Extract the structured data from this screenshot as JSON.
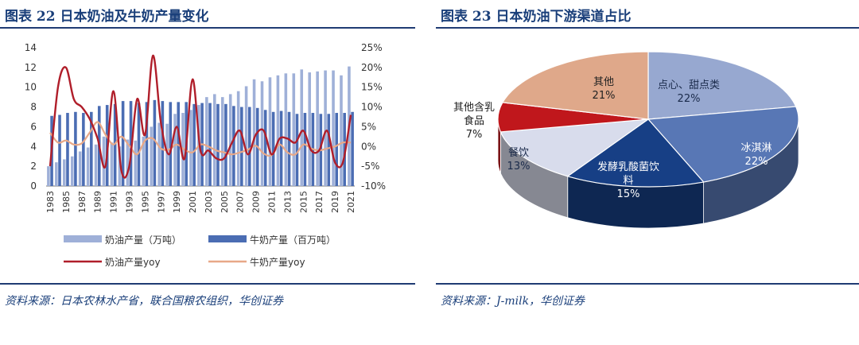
{
  "panels": {
    "left": {
      "title": "图表 22 日本奶油及牛奶产量变化",
      "source": "资料来源：日本农林水产省，联合国粮农组织，华创证券"
    },
    "right": {
      "title": "图表 23 日本奶油下游渠道占比",
      "source": "资料来源：J-milk，华创证券"
    }
  },
  "colors": {
    "title": "#1a3f7a",
    "butter_bar": "#9fb0d8",
    "milk_bar": "#4b6db3",
    "butter_yoy": "#b01e2a",
    "milk_yoy": "#e8a888"
  },
  "chart_data": [
    {
      "type": "bar+line",
      "categories": [
        "1983",
        "1984",
        "1985",
        "1986",
        "1987",
        "1988",
        "1989",
        "1990",
        "1991",
        "1992",
        "1993",
        "1994",
        "1995",
        "1996",
        "1997",
        "1998",
        "1999",
        "2000",
        "2001",
        "2002",
        "2003",
        "2004",
        "2005",
        "2006",
        "2007",
        "2008",
        "2009",
        "2010",
        "2011",
        "2012",
        "2013",
        "2014",
        "2015",
        "2016",
        "2017",
        "2018",
        "2019",
        "2020",
        "2021"
      ],
      "x_tick_labels": [
        "1983",
        "1985",
        "1987",
        "1989",
        "1991",
        "1993",
        "1995",
        "1997",
        "1999",
        "2001",
        "2003",
        "2005",
        "2007",
        "2009",
        "2011",
        "2013",
        "2015",
        "2017",
        "2019",
        "2021"
      ],
      "left_axis": {
        "ylim": [
          0,
          14
        ],
        "ticks": [
          "0",
          "2",
          "4",
          "6",
          "8",
          "10",
          "12",
          "14"
        ]
      },
      "right_axis": {
        "ylim": [
          -10,
          25
        ],
        "ticks": [
          "-10%",
          "-5%",
          "0%",
          "5%",
          "10%",
          "15%",
          "20%",
          "25%"
        ]
      },
      "series": [
        {
          "name": "奶油产量（万吨）",
          "kind": "bar",
          "axis": "left",
          "values": [
            2.0,
            2.4,
            2.7,
            3.0,
            3.5,
            3.9,
            4.2,
            5.0,
            4.4,
            4.0,
            4.7,
            4.6,
            5.0,
            6.0,
            6.4,
            6.3,
            7.3,
            7.4,
            7.7,
            8.2,
            9.0,
            9.3,
            9.0,
            9.3,
            9.6,
            10.1,
            10.8,
            10.6,
            11.0,
            11.2,
            11.4,
            11.4,
            11.8,
            11.5,
            11.6,
            11.7,
            11.7,
            11.2,
            12.1
          ]
        },
        {
          "name": "牛奶产量（百万吨）",
          "kind": "bar",
          "axis": "left",
          "values": [
            7.1,
            7.2,
            7.4,
            7.5,
            7.4,
            7.5,
            8.1,
            8.2,
            8.3,
            8.6,
            8.6,
            8.4,
            8.5,
            8.7,
            8.6,
            8.5,
            8.5,
            8.5,
            8.3,
            8.4,
            8.4,
            8.3,
            8.3,
            8.1,
            8.0,
            8.0,
            7.9,
            7.7,
            7.5,
            7.6,
            7.5,
            7.3,
            7.4,
            7.4,
            7.3,
            7.3,
            7.4,
            7.4,
            7.5
          ]
        },
        {
          "name": "奶油产量yoy",
          "kind": "line",
          "axis": "right",
          "values": [
            -5,
            15,
            20,
            12,
            10,
            7,
            2,
            -5,
            14,
            -6,
            -5,
            12,
            3,
            23,
            6,
            -2,
            5,
            -3,
            17,
            -1,
            -1,
            -3,
            -3,
            1,
            4,
            -2,
            3,
            4,
            -2,
            2,
            2,
            1,
            4,
            -1,
            -1,
            4,
            -4,
            -4,
            8
          ]
        },
        {
          "name": "牛奶产量yoy",
          "kind": "line",
          "axis": "right",
          "values": [
            3.5,
            1.0,
            1.5,
            0.5,
            0.8,
            3.5,
            6.2,
            3.0,
            0.5,
            2.5,
            0.2,
            -2.0,
            1.5,
            2.0,
            -0.5,
            -0.8,
            0.5,
            -0.8,
            -1.5,
            0.5,
            0.0,
            -1.0,
            -1.5,
            -2.0,
            -1.5,
            -0.8,
            0.2,
            -1.8,
            -2.2,
            0.5,
            -1.5,
            -2.0,
            0.5,
            -0.5,
            -1.0,
            -0.5,
            0.0,
            1.0,
            1.0
          ]
        }
      ]
    },
    {
      "type": "pie",
      "style": "3d",
      "slices": [
        {
          "label": "点心、甜点类",
          "value": 22,
          "display": "22%",
          "color": "#97a8d0"
        },
        {
          "label": "冰淇淋",
          "value": 22,
          "display": "22%",
          "color": "#5877b5"
        },
        {
          "label": "发酵乳酸菌饮料",
          "value": 15,
          "display": "15%",
          "color": "#173f85"
        },
        {
          "label": "餐饮",
          "value": 13,
          "display": "13%",
          "color": "#d8dcec"
        },
        {
          "label": "其他含乳食品",
          "value": 7,
          "display": "7%",
          "color": "#c0171c"
        },
        {
          "label": "其他",
          "value": 21,
          "display": "21%",
          "color": "#dfa88a"
        }
      ],
      "label_lines": {
        "dessert": [
          "点心、甜点类",
          "22%"
        ],
        "icecream": [
          "冰淇淋",
          "22%"
        ],
        "fermented": [
          "发酵乳酸菌饮",
          "料",
          "15%"
        ],
        "dining": [
          "餐饮",
          "13%"
        ],
        "dairyfood": [
          "其他含乳",
          "食品",
          "7%"
        ],
        "other": [
          "其他",
          "21%"
        ]
      }
    }
  ]
}
